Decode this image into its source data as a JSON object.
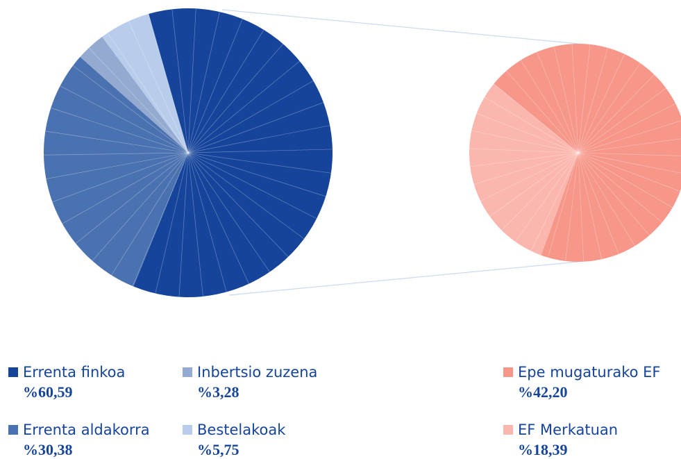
{
  "chart_data": [
    {
      "type": "pie",
      "categories": [
        "Errenta finkoa",
        "Errenta aldakorra",
        "Inbertsio zuzena",
        "Bestelakoak"
      ],
      "values": [
        60.59,
        30.38,
        3.28,
        5.75
      ],
      "value_labels": [
        "%60,59",
        "%30,38",
        "%3,28",
        "%5,75"
      ],
      "colors": [
        "#15449a",
        "#4b72b0",
        "#94aad0",
        "#b7cdeb"
      ]
    },
    {
      "type": "pie",
      "categories": [
        "Epe mugaturako EF",
        "EF Merkatuan"
      ],
      "values": [
        42.2,
        18.39
      ],
      "value_labels": [
        "%42,20",
        "%18,39"
      ],
      "colors": [
        "#f7978a",
        "#fbb7ae"
      ]
    }
  ]
}
